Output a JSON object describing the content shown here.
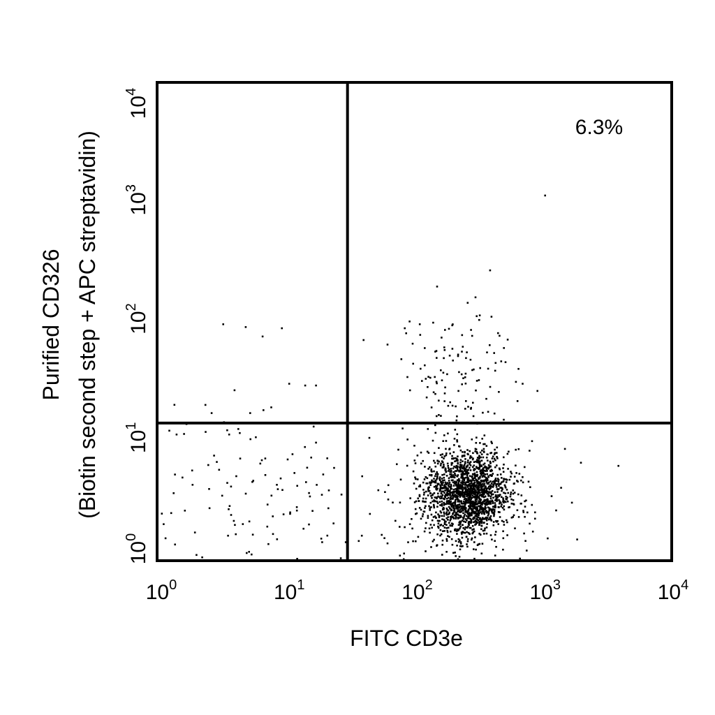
{
  "chart_data": {
    "type": "scatter",
    "title": "",
    "xlabel": "FITC CD3e",
    "ylabel_lines": [
      "Purified CD326",
      "(Biotin second step + APC streptavidin)"
    ],
    "x_scale": "log",
    "y_scale": "log",
    "xlim": [
      1,
      10000
    ],
    "ylim": [
      1,
      10000
    ],
    "x_ticks": [
      {
        "base": "10",
        "exp": "0"
      },
      {
        "base": "10",
        "exp": "1"
      },
      {
        "base": "10",
        "exp": "2"
      },
      {
        "base": "10",
        "exp": "3"
      },
      {
        "base": "10",
        "exp": "4"
      }
    ],
    "y_ticks": [
      {
        "base": "10",
        "exp": "0"
      },
      {
        "base": "10",
        "exp": "1"
      },
      {
        "base": "10",
        "exp": "2"
      },
      {
        "base": "10",
        "exp": "3"
      },
      {
        "base": "10",
        "exp": "4"
      }
    ],
    "quadrant_gates": {
      "x": 30,
      "y": 14
    },
    "annotations": [
      {
        "text": "6.3%",
        "quadrant": "upper-right"
      }
    ],
    "grid": false,
    "legend": "none",
    "populations": [
      {
        "name_hidden": "double-negative",
        "count": 110,
        "x_center": 5,
        "x_spread_decades": 0.45,
        "y_center": 3.5,
        "y_spread_decades": 0.35
      },
      {
        "name_hidden": "cd3-positive",
        "count": 1700,
        "x_center": 260,
        "x_spread_decades": 0.16,
        "y_center": 3.5,
        "y_spread_decades": 0.18
      },
      {
        "name_hidden": "cd3-positive-low-tail",
        "count": 160,
        "x_center": 180,
        "x_spread_decades": 0.35,
        "y_center": 3.5,
        "y_spread_decades": 0.3
      },
      {
        "name_hidden": "upper-right",
        "count": 125,
        "x_center": 220,
        "x_spread_decades": 0.22,
        "y_center": 35,
        "y_spread_decades": 0.3
      }
    ],
    "points": [
      {
        "x": 1050,
        "y": 1150
      },
      {
        "x": 390,
        "y": 270
      },
      {
        "x": 300,
        "y": 160
      },
      {
        "x": 3.2,
        "y": 95
      },
      {
        "x": 4.8,
        "y": 90
      },
      {
        "x": 6.5,
        "y": 75
      },
      {
        "x": 9.2,
        "y": 88
      },
      {
        "x": 10.5,
        "y": 30
      },
      {
        "x": 14,
        "y": 29
      },
      {
        "x": 17,
        "y": 29
      },
      {
        "x": 2.6,
        "y": 17
      },
      {
        "x": 5.2,
        "y": 17
      },
      {
        "x": 6.6,
        "y": 18
      },
      {
        "x": 7.6,
        "y": 19
      },
      {
        "x": 4.2,
        "y": 12.5
      },
      {
        "x": 17,
        "y": 9.6
      },
      {
        "x": 40,
        "y": 70
      },
      {
        "x": 84,
        "y": 88
      },
      {
        "x": 110,
        "y": 95
      },
      {
        "x": 140,
        "y": 98
      },
      {
        "x": 400,
        "y": 110
      },
      {
        "x": 450,
        "y": 80
      },
      {
        "x": 500,
        "y": 60
      },
      {
        "x": 650,
        "y": 40
      },
      {
        "x": 700,
        "y": 30
      },
      {
        "x": 1500,
        "y": 8.5
      },
      {
        "x": 2000,
        "y": 6.5
      },
      {
        "x": 1400,
        "y": 4
      },
      {
        "x": 1700,
        "y": 3
      },
      {
        "x": 1100,
        "y": 1.5
      }
    ]
  }
}
